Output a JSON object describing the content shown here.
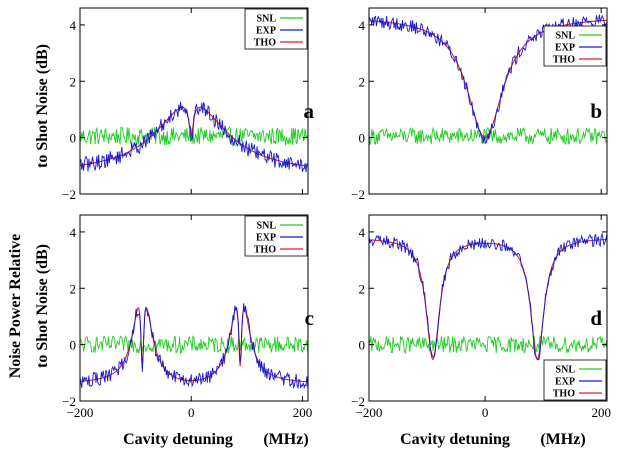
{
  "figure": {
    "ylabel_top": "to Shot Noise (dB)",
    "ylabel_bottom_line1": "Noise Power Relative",
    "ylabel_bottom_line2": "to Shot Noise (dB)",
    "xlabel_left": "Cavity detuning",
    "xlabel_left_unit": "(MHz)",
    "xlabel_right": "Cavity detuning",
    "xlabel_right_unit": "(MHz)"
  },
  "colors": {
    "SNL": "#22cc22",
    "EXP": "#1a1acc",
    "THO": "#dd2020",
    "axis": "#000000"
  },
  "chart_data": [
    {
      "type": "line",
      "panel_label": "a",
      "xlim": [
        -200,
        210
      ],
      "ylim": [
        -2,
        4.6
      ],
      "xticks": [
        -200,
        0,
        200
      ],
      "yticks": [
        -2,
        0,
        2,
        4
      ],
      "show_xtick_labels": false,
      "legend_position": "top-right",
      "legend": [
        "SNL",
        "EXP",
        "THO"
      ],
      "series": [
        {
          "name": "SNL",
          "model": "snl",
          "base": 0.05,
          "noise": 0.32
        },
        {
          "name": "THO",
          "model": "single_peak",
          "base": -1.3,
          "amp": 2.6,
          "width": 75,
          "dip_amp": 1.25,
          "dip_width": 5
        },
        {
          "name": "EXP",
          "model": "single_peak",
          "base": -1.3,
          "amp": 2.6,
          "width": 75,
          "dip_amp": 1.25,
          "dip_width": 5,
          "noise": 0.28
        }
      ]
    },
    {
      "type": "line",
      "panel_label": "b",
      "xlim": [
        -200,
        210
      ],
      "ylim": [
        -2,
        4.6
      ],
      "xticks": [
        -200,
        0,
        200
      ],
      "yticks": [
        -2,
        0,
        2,
        4
      ],
      "show_xtick_labels": false,
      "legend_position": "upper-right",
      "legend": [
        "SNL",
        "EXP",
        "THO"
      ],
      "series": [
        {
          "name": "SNL",
          "model": "snl",
          "base": 0.05,
          "noise": 0.3
        },
        {
          "name": "THO",
          "model": "single_dip",
          "base": 4.3,
          "depth": 4.3,
          "width": 38
        },
        {
          "name": "EXP",
          "model": "single_dip",
          "base": 4.3,
          "depth": 4.3,
          "width": 38,
          "noise": 0.25
        }
      ]
    },
    {
      "type": "line",
      "panel_label": "c",
      "xlim": [
        -200,
        210
      ],
      "ylim": [
        -2,
        4.6
      ],
      "xticks": [
        -200,
        0,
        200
      ],
      "yticks": [
        -2,
        0,
        2,
        4
      ],
      "show_xtick_labels": true,
      "legend_position": "top-right",
      "legend": [
        "SNL",
        "EXP",
        "THO"
      ],
      "series": [
        {
          "name": "SNL",
          "model": "snl",
          "base": 0.0,
          "noise": 0.3
        },
        {
          "name": "THO",
          "model": "double_peak",
          "base": -1.4,
          "centers": [
            -88,
            88
          ],
          "amp": 3.9,
          "width": 17,
          "dip_amp": 3.3,
          "dip_width": 3.5,
          "mid_level": -1.55
        },
        {
          "name": "EXP",
          "model": "double_peak",
          "base": -1.4,
          "centers": [
            -88,
            88
          ],
          "amp": 3.9,
          "width": 17,
          "dip_amp": 3.3,
          "dip_width": 3.5,
          "mid_level": -1.55,
          "noise": 0.26
        }
      ]
    },
    {
      "type": "line",
      "panel_label": "d",
      "xlim": [
        -200,
        210
      ],
      "ylim": [
        -2,
        4.6
      ],
      "xticks": [
        -200,
        0,
        200
      ],
      "yticks": [
        -2,
        0,
        2,
        4
      ],
      "show_xtick_labels": true,
      "legend_position": "bottom-right",
      "legend": [
        "SNL",
        "EXP",
        "THO"
      ],
      "series": [
        {
          "name": "SNL",
          "model": "snl",
          "base": 0.0,
          "noise": 0.3
        },
        {
          "name": "THO",
          "model": "double_dip",
          "base": 3.8,
          "centers": [
            -90,
            90
          ],
          "depth": 4.3,
          "width": 14
        },
        {
          "name": "EXP",
          "model": "double_dip",
          "base": 3.8,
          "centers": [
            -90,
            90
          ],
          "depth": 4.3,
          "width": 14,
          "noise": 0.22
        }
      ]
    }
  ]
}
